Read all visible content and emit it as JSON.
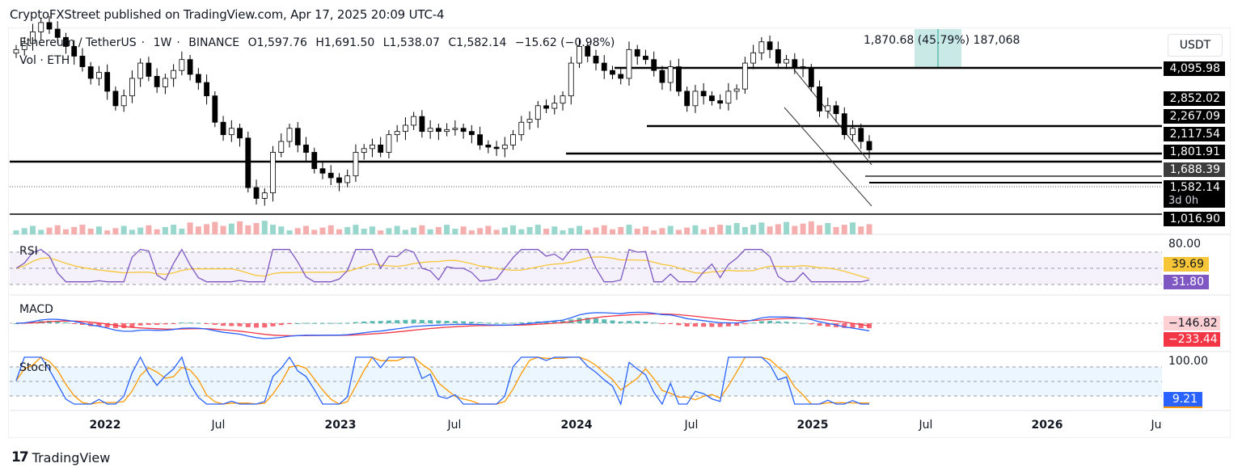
{
  "header": {
    "published_text": "CryptoFXStreet published on TradingView.com, Apr 17, 2025 20:09 UTC-4"
  },
  "legend": {
    "symbol": "Ethereum / TetherUS",
    "interval": "1W",
    "exchange": "BINANCE",
    "open": "O1,597.76",
    "high": "H1,691.50",
    "low": "L1,538.07",
    "close": "C1,582.14",
    "change": "−15.62 (−0.98%)",
    "volume_label": "Vol · ETH"
  },
  "measure_tool": {
    "text": "1,870.68 (45.79%) 187,068"
  },
  "currency_button": "USDT",
  "price_axis": {
    "levels": [
      {
        "label": "4,095.98",
        "style": "black"
      },
      {
        "label": "2,852.02",
        "style": "black"
      },
      {
        "label": "2,267.09",
        "style": "black"
      },
      {
        "label": "2,117.54",
        "style": "black"
      },
      {
        "label": "1,801.91",
        "style": "black"
      },
      {
        "label": "1,688.39",
        "style": "gray"
      },
      {
        "label": "1,582.14",
        "style": "black"
      },
      {
        "label": "1,016.90",
        "style": "black"
      }
    ],
    "countdown": "3d 0h"
  },
  "rsi": {
    "label": "RSI",
    "upper": "80.00",
    "ma_value": "39.69",
    "rsi_value": "31.80",
    "ma_color": "#f7c638",
    "rsi_color": "#7e57c2"
  },
  "macd": {
    "label": "MACD",
    "signal_value": "−146.82",
    "hist_value": "−233.44",
    "macd_color": "#2962ff",
    "signal_color": "#f23645"
  },
  "stoch": {
    "label": "Stoch",
    "upper": "100.00",
    "k_value": "9.21",
    "k_color": "#2962ff",
    "d_color": "#ff9800"
  },
  "x_axis": {
    "ticks": [
      {
        "label": "2022",
        "bold": true
      },
      {
        "label": "Jul",
        "bold": false
      },
      {
        "label": "2023",
        "bold": true
      },
      {
        "label": "Jul",
        "bold": false
      },
      {
        "label": "2024",
        "bold": true
      },
      {
        "label": "Jul",
        "bold": false
      },
      {
        "label": "2025",
        "bold": true
      },
      {
        "label": "Jul",
        "bold": false
      },
      {
        "label": "2026",
        "bold": true
      },
      {
        "label": "Ju",
        "bold": false
      }
    ]
  },
  "footer": {
    "brand": "TradingView"
  },
  "chart_data": {
    "type": "candlestick",
    "title": "Ethereum / TetherUS · 1W · BINANCE",
    "xlabel": "",
    "ylabel": "USDT",
    "ylim": [
      900,
      4400
    ],
    "horizontal_levels": [
      4095.98,
      2852.02,
      2267.09,
      2117.54,
      1801.91,
      1688.39,
      1582.14,
      1016.9
    ],
    "weekly_close_path": [
      3700,
      3900,
      4300,
      4650,
      4400,
      4100,
      3800,
      3500,
      3200,
      2900,
      3050,
      2600,
      2300,
      2500,
      2900,
      3300,
      2950,
      2700,
      2900,
      3100,
      3400,
      3000,
      2800,
      2500,
      2000,
      1800,
      1900,
      1750,
      1150,
      1050,
      1100,
      1550,
      1700,
      1900,
      1650,
      1550,
      1350,
      1300,
      1250,
      1200,
      1270,
      1550,
      1600,
      1650,
      1550,
      1800,
      1850,
      1950,
      2100,
      1850,
      1900,
      1850,
      1880,
      1900,
      1850,
      1800,
      1650,
      1620,
      1600,
      1650,
      1800,
      2000,
      2050,
      2300,
      2250,
      2350,
      2500,
      3300,
      3800,
      3500,
      3300,
      3100,
      3000,
      2900,
      3700,
      3500,
      3400,
      3100,
      2800,
      3200,
      2600,
      2300,
      2600,
      2500,
      2400,
      2350,
      2600,
      2650,
      3300,
      3600,
      3950,
      3700,
      3300,
      3400,
      3200,
      3150,
      2700,
      2200,
      2300,
      2150,
      1800,
      1900,
      1700,
      1582
    ],
    "volume_note": "weekly volume histogram (ETH), colored teal for up weeks and red for down weeks",
    "rsi": {
      "last": 31.8,
      "ma_last": 39.69,
      "upper_band": 80,
      "lower_band": 20
    },
    "macd": {
      "signal_last": -146.82,
      "histogram_last": -233.44
    },
    "stoch": {
      "k_last": 9.21,
      "upper_band": 80,
      "lower_band": 20,
      "max": 100
    },
    "measure": {
      "price_change": 1870.68,
      "percent": 45.79,
      "volume": 187068
    }
  }
}
